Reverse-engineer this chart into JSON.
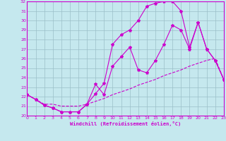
{
  "xlabel": "Windchill (Refroidissement éolien,°C)",
  "bg_color": "#c5e8ee",
  "line_color": "#cc00cc",
  "grid_color": "#9bbfc8",
  "xlim": [
    0,
    23
  ],
  "ylim": [
    20,
    32
  ],
  "yticks": [
    20,
    21,
    22,
    23,
    24,
    25,
    26,
    27,
    28,
    29,
    30,
    31,
    32
  ],
  "xticks": [
    0,
    1,
    2,
    3,
    4,
    5,
    6,
    7,
    8,
    9,
    10,
    11,
    12,
    13,
    14,
    15,
    16,
    17,
    18,
    19,
    20,
    21,
    22,
    23
  ],
  "curve1_x": [
    0,
    1,
    2,
    3,
    4,
    5,
    6,
    7,
    8,
    9,
    10,
    11,
    12,
    13,
    14,
    15,
    16,
    17,
    18,
    19,
    20,
    21,
    22,
    23
  ],
  "curve1_y": [
    22.2,
    21.7,
    21.1,
    20.8,
    20.4,
    20.4,
    20.4,
    21.2,
    22.3,
    23.4,
    27.5,
    28.5,
    29.0,
    30.0,
    31.5,
    31.8,
    32.0,
    32.0,
    31.0,
    27.2,
    29.8,
    27.0,
    25.8,
    23.8
  ],
  "curve2_x": [
    0,
    1,
    2,
    3,
    4,
    5,
    6,
    7,
    8,
    9,
    10,
    11,
    12,
    13,
    14,
    15,
    16,
    17,
    18,
    19,
    20,
    21,
    22,
    23
  ],
  "curve2_y": [
    22.2,
    21.7,
    21.1,
    20.8,
    20.4,
    20.4,
    20.4,
    21.2,
    23.3,
    22.2,
    25.2,
    26.2,
    27.2,
    24.8,
    24.5,
    25.8,
    27.5,
    29.5,
    29.0,
    27.0,
    29.8,
    27.0,
    25.8,
    23.8
  ],
  "curve3_x": [
    0,
    1,
    2,
    3,
    4,
    5,
    6,
    7,
    8,
    9,
    10,
    11,
    12,
    13,
    14,
    15,
    16,
    17,
    18,
    19,
    20,
    21,
    22,
    23
  ],
  "curve3_y": [
    22.2,
    21.7,
    21.2,
    21.2,
    21.0,
    21.0,
    21.0,
    21.2,
    21.5,
    21.8,
    22.2,
    22.5,
    22.8,
    23.2,
    23.5,
    23.8,
    24.2,
    24.5,
    24.8,
    25.2,
    25.5,
    25.8,
    26.0,
    23.8
  ]
}
